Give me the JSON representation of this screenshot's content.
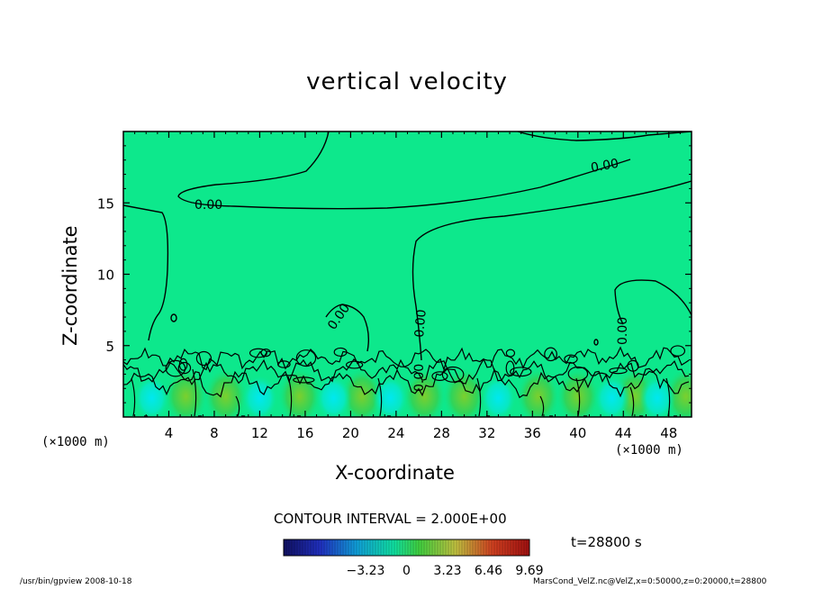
{
  "chart_data": {
    "type": "heatmap",
    "title": "vertical velocity",
    "xlabel": "X-coordinate",
    "ylabel": "Z-coordinate",
    "x_unit_left": "(×1000 m)",
    "x_unit_right": "(×1000 m)",
    "xlim": [
      0,
      50
    ],
    "ylim": [
      0,
      20
    ],
    "x_ticks": [
      4,
      8,
      12,
      16,
      20,
      24,
      28,
      32,
      36,
      40,
      44,
      48
    ],
    "x_tick_labels": [
      "4",
      "8",
      "12",
      "16",
      "20",
      "24",
      "28",
      "32",
      "36",
      "40",
      "44",
      "48"
    ],
    "y_ticks": [
      5,
      10,
      15
    ],
    "y_tick_labels": [
      "5",
      "10",
      "15"
    ],
    "contour_labels": [
      "0.00",
      "0.00",
      "0.00",
      "0.00",
      "0.00",
      "0.00"
    ],
    "contour_interval": "CONTOUR INTERVAL = 2.000E+00",
    "colorbar": {
      "tick_labels": [
        "−3.23",
        "0",
        "3.23",
        "6.46",
        "9.69"
      ],
      "tick_values": [
        -3.23,
        0,
        3.23,
        6.46,
        9.69
      ],
      "range": [
        -9.69,
        9.69
      ]
    },
    "time": "t=28800 s",
    "footer_left": "/usr/bin/gpview   2008-10-18",
    "footer_right": "MarsCond_VelZ.nc@VelZ,x=0:50000,z=0:20000,t=28800"
  },
  "colors": {
    "background_field": "#0de88c",
    "upward": "#33c233",
    "downward": "#00e6c8"
  }
}
